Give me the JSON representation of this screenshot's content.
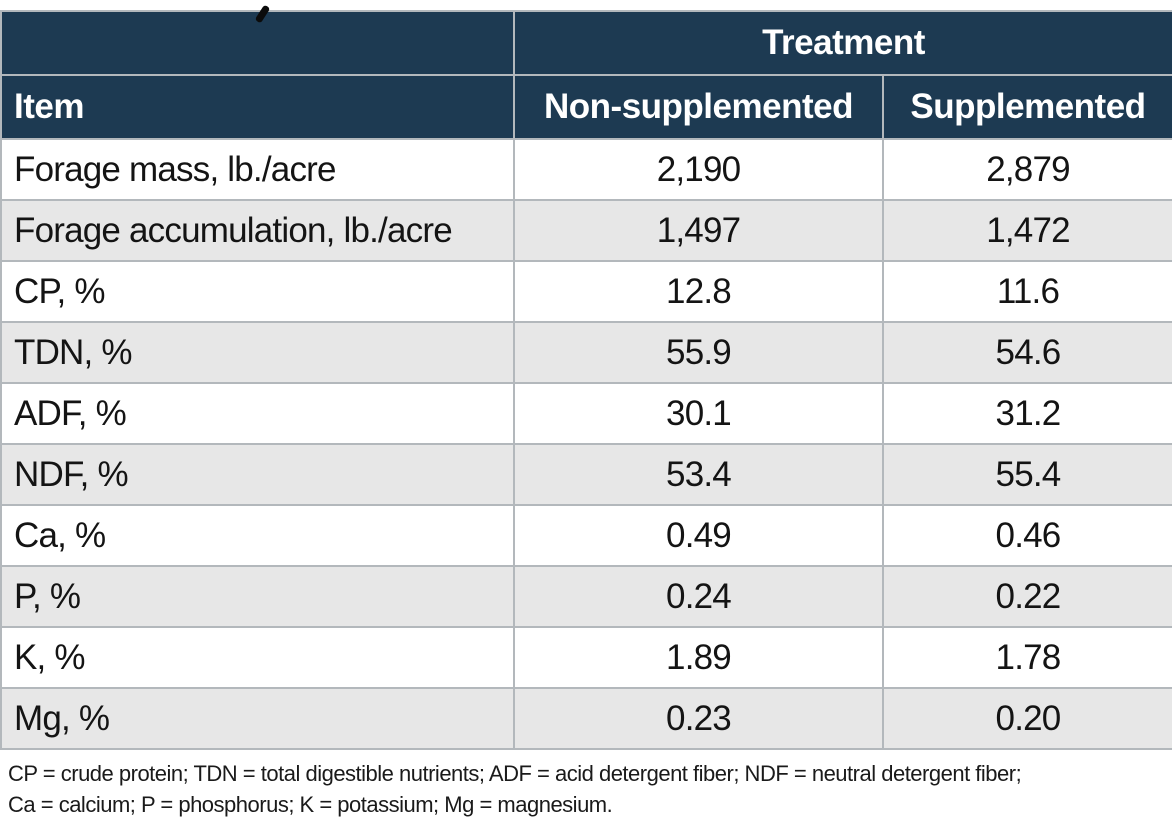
{
  "colors": {
    "header_bg": "#1d3a52",
    "header_text": "#ffffff",
    "row_alt_bg": "#e7e7e7",
    "border": "#b3b8bc",
    "body_text": "#141414"
  },
  "chart_data": {
    "type": "table",
    "group_header": "Treatment",
    "columns": [
      "Item",
      "Non-supplemented",
      "Supplemented"
    ],
    "rows": [
      [
        "Forage mass, lb./acre",
        "2,190",
        "2,879"
      ],
      [
        "Forage accumulation, lb./acre",
        "1,497",
        "1,472"
      ],
      [
        "CP, %",
        "12.8",
        "11.6"
      ],
      [
        "TDN, %",
        "55.9",
        "54.6"
      ],
      [
        "ADF, %",
        "30.1",
        "31.2"
      ],
      [
        "NDF, %",
        "53.4",
        "55.4"
      ],
      [
        "Ca, %",
        "0.49",
        "0.46"
      ],
      [
        "P, %",
        "0.24",
        "0.22"
      ],
      [
        "K, %",
        "1.89",
        "1.78"
      ],
      [
        "Mg, %",
        "0.23",
        "0.20"
      ]
    ],
    "footnote_lines": [
      "CP = crude protein; TDN = total digestible nutrients; ADF = acid detergent fiber; NDF = neutral detergent fiber;",
      "Ca = calcium; P = phosphorus; K = potassium; Mg = magnesium."
    ]
  }
}
